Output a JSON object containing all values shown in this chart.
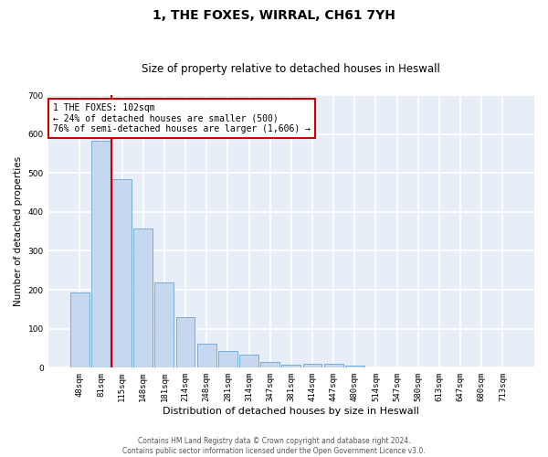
{
  "title": "1, THE FOXES, WIRRAL, CH61 7YH",
  "subtitle": "Size of property relative to detached houses in Heswall",
  "xlabel": "Distribution of detached houses by size in Heswall",
  "ylabel": "Number of detached properties",
  "categories": [
    "48sqm",
    "81sqm",
    "115sqm",
    "148sqm",
    "181sqm",
    "214sqm",
    "248sqm",
    "281sqm",
    "314sqm",
    "347sqm",
    "381sqm",
    "414sqm",
    "447sqm",
    "480sqm",
    "514sqm",
    "547sqm",
    "580sqm",
    "613sqm",
    "647sqm",
    "680sqm",
    "713sqm"
  ],
  "values": [
    193,
    583,
    483,
    358,
    218,
    131,
    62,
    44,
    33,
    16,
    8,
    10,
    11,
    6,
    0,
    0,
    0,
    0,
    0,
    0,
    0
  ],
  "bar_color": "#c5d8f0",
  "bar_edge_color": "#7aadd4",
  "background_color": "#e8eef8",
  "grid_color": "#ffffff",
  "vline_color": "#cc0000",
  "annotation_text": "1 THE FOXES: 102sqm\n← 24% of detached houses are smaller (500)\n76% of semi-detached houses are larger (1,606) →",
  "annotation_box_color": "#ffffff",
  "annotation_box_edge": "#cc0000",
  "ylim": [
    0,
    700
  ],
  "yticks": [
    0,
    100,
    200,
    300,
    400,
    500,
    600,
    700
  ],
  "footer_text": "Contains HM Land Registry data © Crown copyright and database right 2024.\nContains public sector information licensed under the Open Government Licence v3.0.",
  "title_fontsize": 10,
  "subtitle_fontsize": 8.5,
  "xlabel_fontsize": 8,
  "ylabel_fontsize": 7.5,
  "tick_fontsize": 6.5,
  "annotation_fontsize": 7,
  "footer_fontsize": 5.5
}
